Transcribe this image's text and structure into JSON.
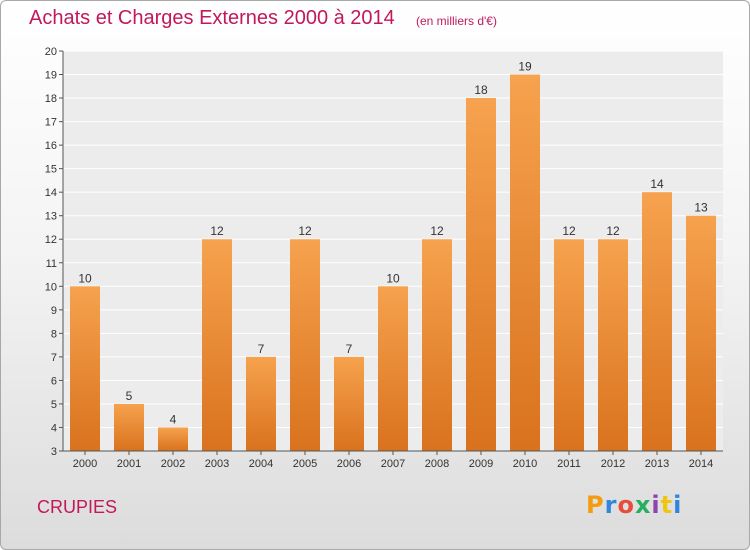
{
  "header": {
    "title": "Achats et Charges Externes 2000 à 2014",
    "subtitle": "(en milliers d'€)"
  },
  "footer": {
    "commune": "CRUPIES",
    "brand": [
      "P",
      "r",
      "o",
      "x",
      "i",
      "t",
      "i"
    ],
    "brand_colors": [
      "#f39c12",
      "#2e86de",
      "#e74c3c",
      "#27ae60",
      "#8e44ad",
      "#f1c40f",
      "#2e86de"
    ]
  },
  "chart_data": {
    "type": "bar",
    "categories": [
      "2000",
      "2001",
      "2002",
      "2003",
      "2004",
      "2005",
      "2006",
      "2007",
      "2008",
      "2009",
      "2010",
      "2011",
      "2012",
      "2013",
      "2014"
    ],
    "values": [
      10,
      5,
      4,
      12,
      7,
      12,
      7,
      10,
      12,
      18,
      19,
      12,
      12,
      14,
      13
    ],
    "title": "Achats et Charges Externes 2000 à 2014",
    "subtitle": "(en milliers d'€)",
    "xlabel": "",
    "ylabel": "",
    "ylim": [
      3,
      20
    ],
    "yticks": [
      3,
      4,
      5,
      6,
      7,
      8,
      9,
      10,
      11,
      12,
      13,
      14,
      15,
      16,
      17,
      18,
      19,
      20
    ],
    "grid": true,
    "bar_color_top": "#f6a24e",
    "bar_color_bottom": "#d9721e"
  }
}
